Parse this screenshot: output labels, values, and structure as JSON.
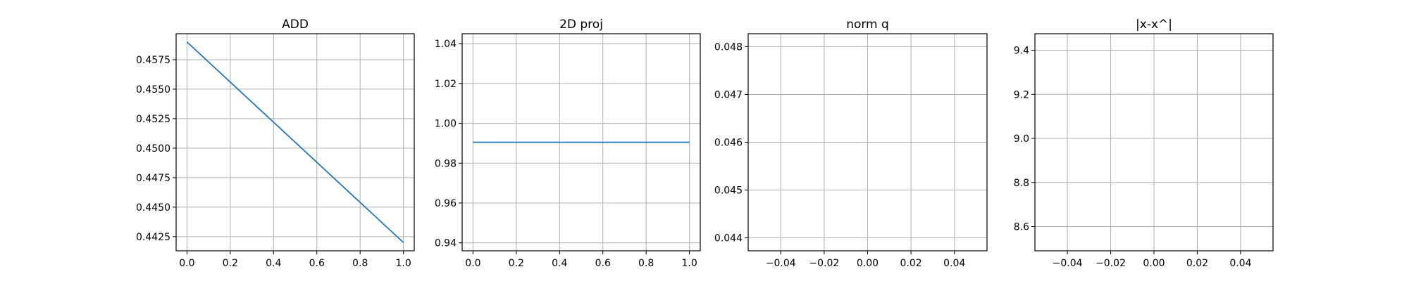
{
  "chart_data": [
    {
      "type": "line",
      "title": "ADD",
      "grid": true,
      "xlim": [
        -0.05,
        1.05
      ],
      "ylim": [
        0.4413,
        0.4597
      ],
      "xticks": [
        0.0,
        0.2,
        0.4,
        0.6,
        0.8,
        1.0
      ],
      "xtick_labels": [
        "0.0",
        "0.2",
        "0.4",
        "0.6",
        "0.8",
        "1.0"
      ],
      "yticks": [
        0.4425,
        0.445,
        0.4475,
        0.45,
        0.4525,
        0.455,
        0.4575
      ],
      "ytick_labels": [
        "0.4425",
        "0.4450",
        "0.4475",
        "0.4500",
        "0.4525",
        "0.4550",
        "0.4575"
      ],
      "series": [
        {
          "color": "#1f77b4",
          "x": [
            0,
            1
          ],
          "y": [
            0.459,
            0.442
          ]
        }
      ]
    },
    {
      "type": "line",
      "title": "2D proj",
      "grid": true,
      "xlim": [
        -0.05,
        1.05
      ],
      "ylim": [
        0.936,
        1.045
      ],
      "xticks": [
        0.0,
        0.2,
        0.4,
        0.6,
        0.8,
        1.0
      ],
      "xtick_labels": [
        "0.0",
        "0.2",
        "0.4",
        "0.6",
        "0.8",
        "1.0"
      ],
      "yticks": [
        0.94,
        0.96,
        0.98,
        1.0,
        1.02,
        1.04
      ],
      "ytick_labels": [
        "0.94",
        "0.96",
        "0.98",
        "1.00",
        "1.02",
        "1.04"
      ],
      "series": [
        {
          "color": "#1f77b4",
          "x": [
            0,
            1
          ],
          "y": [
            0.9905,
            0.9905
          ]
        }
      ]
    },
    {
      "type": "line",
      "title": "norm q",
      "grid": true,
      "xlim": [
        -0.055,
        0.055
      ],
      "ylim": [
        0.04373,
        0.04827
      ],
      "xticks": [
        -0.04,
        -0.02,
        0.0,
        0.02,
        0.04
      ],
      "xtick_labels": [
        "−0.04",
        "−0.02",
        "0.00",
        "0.02",
        "0.04"
      ],
      "yticks": [
        0.044,
        0.045,
        0.046,
        0.047,
        0.048
      ],
      "ytick_labels": [
        "0.044",
        "0.045",
        "0.046",
        "0.047",
        "0.048"
      ],
      "series": []
    },
    {
      "type": "line",
      "title": "|x-x^|",
      "grid": true,
      "xlim": [
        -0.055,
        0.055
      ],
      "ylim": [
        8.49,
        9.475
      ],
      "xticks": [
        -0.04,
        -0.02,
        0.0,
        0.02,
        0.04
      ],
      "xtick_labels": [
        "−0.04",
        "−0.02",
        "0.00",
        "0.02",
        "0.04"
      ],
      "yticks": [
        8.6,
        8.8,
        9.0,
        9.2,
        9.4
      ],
      "ytick_labels": [
        "8.6",
        "8.8",
        "9.0",
        "9.2",
        "9.4"
      ],
      "series": []
    }
  ]
}
